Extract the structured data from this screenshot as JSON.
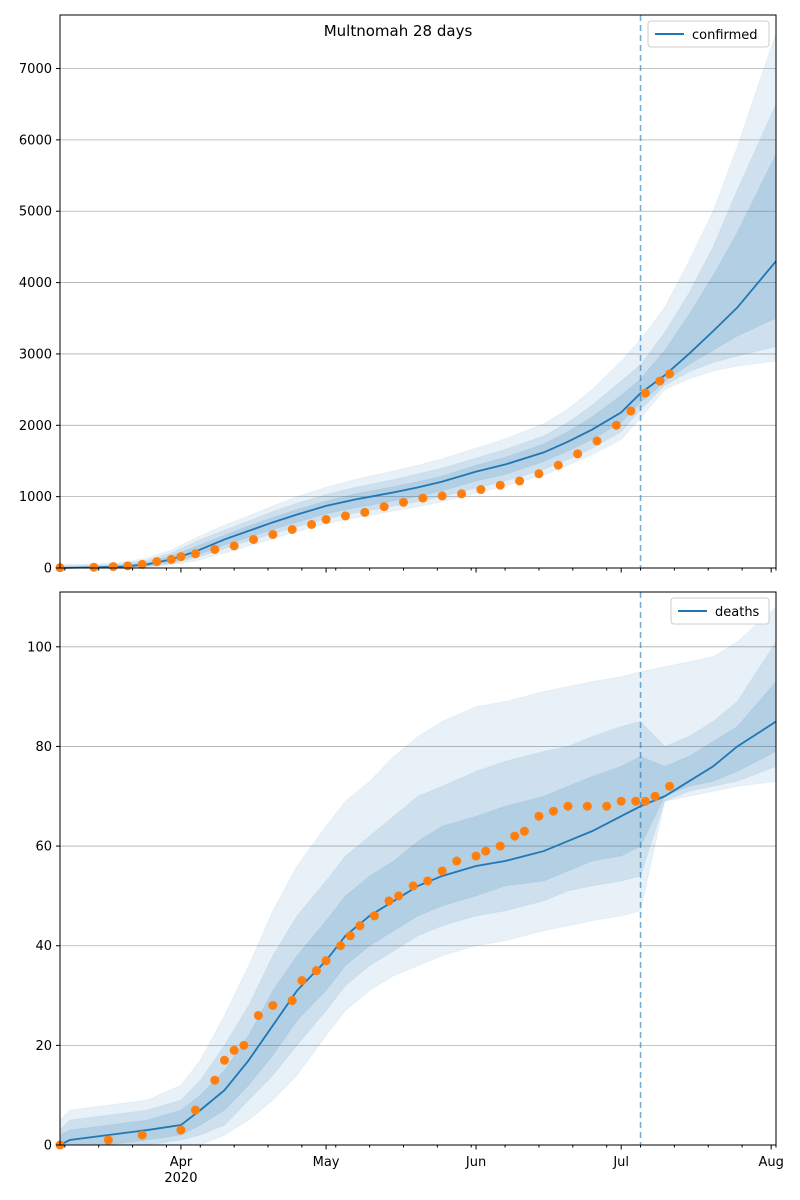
{
  "figure": {
    "title": "Multnomah 28 days"
  },
  "colors": {
    "model": "#1f77b4",
    "observed": "#ff7f0e",
    "band": "#1f77b4",
    "grid": "#b0b0b0",
    "today_line": "#1f77b4"
  },
  "chart_data": [
    {
      "type": "line",
      "panel": "top",
      "title": "Multnomah 28 days",
      "series_label": "confirmed",
      "legend_position": "top-right",
      "grid": "y",
      "x_range": [
        "2020-03-07",
        "2020-08-02"
      ],
      "ylim": [
        0,
        7750
      ],
      "yticks": [
        0,
        1000,
        2000,
        3000,
        4000,
        5000,
        6000,
        7000
      ],
      "today_marker": "2020-07-05",
      "model": {
        "x": [
          "2020-03-07",
          "2020-03-15",
          "2020-03-20",
          "2020-03-25",
          "2020-03-30",
          "2020-04-04",
          "2020-04-10",
          "2020-04-15",
          "2020-04-20",
          "2020-04-25",
          "2020-05-01",
          "2020-05-07",
          "2020-05-15",
          "2020-05-20",
          "2020-05-25",
          "2020-06-01",
          "2020-06-07",
          "2020-06-15",
          "2020-06-20",
          "2020-06-25",
          "2020-07-01",
          "2020-07-05",
          "2020-07-10",
          "2020-07-15",
          "2020-07-20",
          "2020-07-25",
          "2020-08-02"
        ],
        "y": [
          0,
          10,
          20,
          50,
          120,
          230,
          400,
          520,
          640,
          750,
          870,
          960,
          1060,
          1130,
          1210,
          1350,
          1450,
          1620,
          1770,
          1940,
          2180,
          2450,
          2700,
          3000,
          3320,
          3650,
          4300
        ]
      },
      "bands": [
        {
          "upper": [
            50,
            60,
            80,
            140,
            250,
            420,
            600,
            730,
            870,
            1000,
            1130,
            1240,
            1360,
            1440,
            1530,
            1680,
            1810,
            2020,
            2230,
            2500,
            2900,
            3200,
            3650,
            4300,
            5000,
            5900,
            7500
          ],
          "lower": [
            0,
            0,
            0,
            10,
            40,
            100,
            210,
            310,
            410,
            510,
            620,
            700,
            800,
            860,
            930,
            1050,
            1150,
            1300,
            1440,
            1590,
            1800,
            2100,
            2500,
            2650,
            2760,
            2830,
            2900
          ]
        },
        {
          "upper": [
            30,
            40,
            60,
            110,
            210,
            370,
            530,
            660,
            790,
            910,
            1030,
            1130,
            1240,
            1320,
            1400,
            1540,
            1660,
            1850,
            2040,
            2280,
            2620,
            2850,
            3300,
            3850,
            4500,
            5300,
            6500
          ],
          "lower": [
            0,
            0,
            5,
            20,
            60,
            140,
            270,
            380,
            480,
            580,
            690,
            770,
            870,
            930,
            1000,
            1120,
            1220,
            1380,
            1520,
            1680,
            1910,
            2220,
            2560,
            2750,
            2880,
            2970,
            3100
          ]
        },
        {
          "upper": [
            15,
            25,
            40,
            80,
            170,
            300,
            460,
            590,
            710,
            820,
            940,
            1040,
            1140,
            1210,
            1290,
            1440,
            1550,
            1740,
            1910,
            2120,
            2420,
            2650,
            3050,
            3550,
            4100,
            4700,
            5800
          ],
          "lower": [
            0,
            0,
            10,
            30,
            80,
            170,
            320,
            430,
            540,
            640,
            760,
            840,
            940,
            1000,
            1080,
            1220,
            1310,
            1490,
            1640,
            1800,
            2040,
            2320,
            2610,
            2850,
            3050,
            3250,
            3500
          ]
        }
      ],
      "observed": {
        "x": [
          "2020-03-07",
          "2020-03-14",
          "2020-03-18",
          "2020-03-21",
          "2020-03-24",
          "2020-03-27",
          "2020-03-30",
          "2020-04-01",
          "2020-04-04",
          "2020-04-08",
          "2020-04-12",
          "2020-04-16",
          "2020-04-20",
          "2020-04-24",
          "2020-04-28",
          "2020-05-01",
          "2020-05-05",
          "2020-05-09",
          "2020-05-13",
          "2020-05-17",
          "2020-05-21",
          "2020-05-25",
          "2020-05-29",
          "2020-06-02",
          "2020-06-06",
          "2020-06-10",
          "2020-06-14",
          "2020-06-18",
          "2020-06-22",
          "2020-06-26",
          "2020-06-30",
          "2020-07-03",
          "2020-07-06",
          "2020-07-09",
          "2020-07-11"
        ],
        "y": [
          5,
          10,
          20,
          30,
          50,
          90,
          120,
          160,
          200,
          260,
          310,
          400,
          470,
          540,
          610,
          680,
          730,
          780,
          860,
          920,
          980,
          1010,
          1040,
          1100,
          1160,
          1220,
          1320,
          1440,
          1600,
          1780,
          2000,
          2200,
          2450,
          2620,
          2720
        ]
      }
    },
    {
      "type": "line",
      "panel": "bottom",
      "series_label": "deaths",
      "legend_position": "top-right",
      "grid": "y",
      "x_range": [
        "2020-03-07",
        "2020-08-02"
      ],
      "ylim": [
        0,
        111
      ],
      "yticks": [
        0,
        20,
        40,
        60,
        80,
        100
      ],
      "xticks": [
        {
          "date": "2020-04-01",
          "label": "Apr",
          "sublabel": "2020"
        },
        {
          "date": "2020-05-01",
          "label": "May"
        },
        {
          "date": "2020-06-01",
          "label": "Jun"
        },
        {
          "date": "2020-07-01",
          "label": "Jul"
        },
        {
          "date": "2020-08-01",
          "label": "Aug"
        }
      ],
      "today_marker": "2020-07-05",
      "model": {
        "x": [
          "2020-03-07",
          "2020-03-09",
          "2020-03-17",
          "2020-03-25",
          "2020-04-01",
          "2020-04-05",
          "2020-04-10",
          "2020-04-15",
          "2020-04-20",
          "2020-04-25",
          "2020-05-01",
          "2020-05-05",
          "2020-05-10",
          "2020-05-15",
          "2020-05-20",
          "2020-05-25",
          "2020-06-01",
          "2020-06-07",
          "2020-06-15",
          "2020-06-20",
          "2020-06-25",
          "2020-07-01",
          "2020-07-05",
          "2020-07-10",
          "2020-07-15",
          "2020-07-20",
          "2020-07-25",
          "2020-08-02"
        ],
        "y": [
          0,
          1,
          2,
          3,
          4,
          7,
          11,
          17,
          24,
          31,
          37,
          42,
          46,
          49,
          52,
          54,
          56,
          57,
          59,
          61,
          63,
          66,
          68,
          70,
          73,
          76,
          80,
          85
        ]
      },
      "bands": [
        {
          "upper": [
            5,
            7,
            8,
            9,
            12,
            17,
            26,
            36,
            47,
            56,
            64,
            69,
            73,
            78,
            82,
            85,
            88,
            89,
            91,
            92,
            93,
            94,
            95,
            96,
            97,
            98,
            101,
            108
          ],
          "lower": [
            0,
            0,
            0,
            0,
            0,
            0,
            2,
            5,
            9,
            14,
            22,
            27,
            31,
            34,
            36,
            38,
            40,
            41,
            43,
            44,
            45,
            46,
            47,
            69,
            70,
            71,
            72,
            73
          ]
        },
        {
          "upper": [
            3,
            5,
            6,
            7,
            9,
            13,
            20,
            28,
            38,
            46,
            53,
            58,
            62,
            66,
            70,
            72,
            75,
            77,
            79,
            80,
            82,
            84,
            85,
            80,
            82,
            85,
            89,
            101
          ],
          "lower": [
            0,
            0,
            0,
            0,
            1,
            2,
            4,
            9,
            14,
            20,
            27,
            32,
            36,
            39,
            42,
            44,
            46,
            47,
            49,
            51,
            52,
            53,
            54,
            69,
            71,
            72,
            73,
            76
          ]
        },
        {
          "upper": [
            2,
            3,
            4,
            5,
            7,
            10,
            15,
            22,
            31,
            38,
            45,
            50,
            54,
            57,
            61,
            64,
            66,
            68,
            70,
            72,
            74,
            76,
            78,
            76,
            78,
            81,
            84,
            93
          ],
          "lower": [
            0,
            0,
            0,
            1,
            2,
            4,
            7,
            12,
            18,
            25,
            31,
            36,
            40,
            43,
            46,
            48,
            50,
            52,
            53,
            55,
            57,
            58,
            60,
            70,
            72,
            73,
            75,
            79
          ]
        }
      ],
      "observed": {
        "x": [
          "2020-03-07",
          "2020-03-17",
          "2020-03-24",
          "2020-04-01",
          "2020-04-04",
          "2020-04-08",
          "2020-04-10",
          "2020-04-12",
          "2020-04-14",
          "2020-04-17",
          "2020-04-20",
          "2020-04-24",
          "2020-04-26",
          "2020-04-29",
          "2020-05-01",
          "2020-05-04",
          "2020-05-06",
          "2020-05-08",
          "2020-05-11",
          "2020-05-14",
          "2020-05-16",
          "2020-05-19",
          "2020-05-22",
          "2020-05-25",
          "2020-05-28",
          "2020-06-01",
          "2020-06-03",
          "2020-06-06",
          "2020-06-09",
          "2020-06-11",
          "2020-06-14",
          "2020-06-17",
          "2020-06-20",
          "2020-06-24",
          "2020-06-28",
          "2020-07-01",
          "2020-07-04",
          "2020-07-06",
          "2020-07-08",
          "2020-07-11"
        ],
        "y": [
          0,
          1,
          2,
          3,
          7,
          13,
          17,
          19,
          20,
          26,
          28,
          29,
          33,
          35,
          37,
          40,
          42,
          44,
          46,
          49,
          50,
          52,
          53,
          55,
          57,
          58,
          59,
          60,
          62,
          63,
          66,
          67,
          68,
          68,
          68,
          69,
          69,
          69,
          70,
          72
        ]
      }
    }
  ]
}
